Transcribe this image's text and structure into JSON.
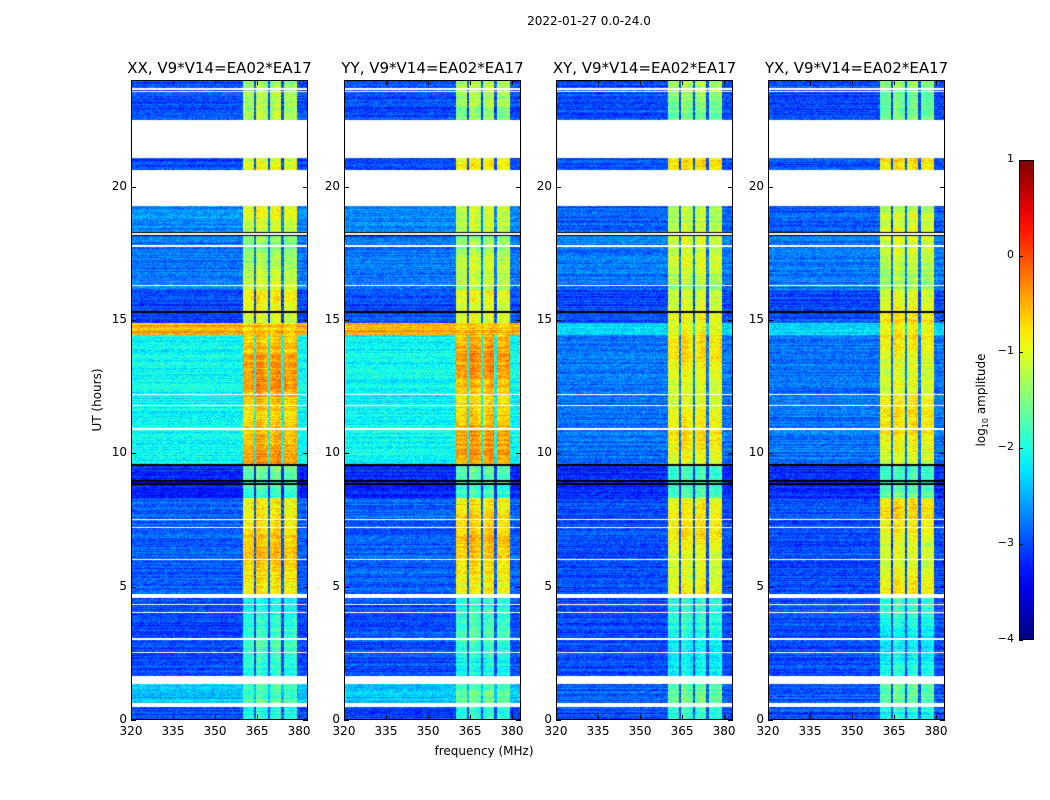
{
  "chart_data": {
    "type": "heatmap",
    "title": "2022-01-27 0.0-24.0",
    "xlabel": "frequency (MHz)",
    "ylabel": "UT (hours)",
    "xlim": [
      320,
      383.2
    ],
    "ylim": [
      0,
      24
    ],
    "xticks": [
      320,
      335,
      350,
      365,
      380
    ],
    "yticks": [
      0,
      5,
      10,
      15,
      20
    ],
    "panels": [
      {
        "title": "XX, V9*V14=EA02*EA17",
        "kind": "parallel"
      },
      {
        "title": "YY, V9*V14=EA02*EA17",
        "kind": "parallel"
      },
      {
        "title": "XY, V9*V14=EA02*EA17",
        "kind": "cross"
      },
      {
        "title": "YX, V9*V14=EA02*EA17",
        "kind": "cross"
      }
    ],
    "colorbar": {
      "label_prefix": "log",
      "label_sub": "10",
      "label_suffix": " amplitude",
      "range": [
        -4,
        1
      ],
      "ticks": [
        "1",
        "0",
        "−1",
        "−2",
        "−3",
        "−4"
      ],
      "tick_values": [
        1,
        0,
        -1,
        -2,
        -3,
        -4
      ],
      "colormap": "jet"
    },
    "bright_band_mhz": [
      360,
      379.5
    ],
    "band_notches_mhz": [
      364.5,
      369.5,
      374.3
    ],
    "segments_hours": [
      {
        "t": [
          0.0,
          0.45
        ],
        "parallel": [
          -3.0,
          -2.0
        ],
        "cross": [
          -3.0,
          -2.0
        ]
      },
      {
        "t": [
          0.6,
          1.3
        ],
        "parallel": [
          -2.4,
          -1.6
        ],
        "cross": [
          -2.9,
          -1.7
        ]
      },
      {
        "t": [
          1.6,
          4.55
        ],
        "parallel": [
          -3.0,
          -1.9
        ],
        "cross": [
          -3.0,
          -2.0
        ]
      },
      {
        "t": [
          4.7,
          8.3
        ],
        "parallel": [
          -2.9,
          -0.7
        ],
        "cross": [
          -3.0,
          -0.9
        ]
      },
      {
        "t": [
          8.3,
          9.6
        ],
        "parallel": [
          -3.2,
          -1.7
        ],
        "cross": [
          -3.2,
          -1.7
        ]
      },
      {
        "t": [
          9.6,
          14.45
        ],
        "parallel": [
          -2.1,
          -0.5
        ],
        "cross": [
          -2.8,
          -0.9
        ]
      },
      {
        "t": [
          14.45,
          14.9
        ],
        "parallel": [
          -0.5,
          -0.5
        ],
        "cross": [
          -2.3,
          -1.0
        ]
      },
      {
        "t": [
          14.9,
          16.15
        ],
        "parallel": [
          -3.0,
          -0.9
        ],
        "cross": [
          -3.0,
          -0.9
        ]
      },
      {
        "t": [
          16.15,
          18.2
        ],
        "parallel": [
          -2.8,
          -1.3
        ],
        "cross": [
          -2.8,
          -1.2
        ]
      },
      {
        "t": [
          18.3,
          19.3
        ],
        "parallel": [
          -2.7,
          -1.0
        ],
        "cross": [
          -2.9,
          -1.1
        ]
      },
      {
        "t": [
          20.67,
          21.1
        ],
        "parallel": [
          -3.0,
          -0.9
        ],
        "cross": [
          -3.0,
          -0.9
        ]
      },
      {
        "t": [
          22.55,
          24.0
        ],
        "parallel": [
          -3.0,
          -1.4
        ],
        "cross": [
          -3.0,
          -1.4
        ]
      }
    ],
    "flagged_lines_hours": [
      0.5,
      2.5,
      3.0,
      4.0,
      4.3,
      6.0,
      7.2,
      7.5,
      10.9,
      11.8,
      12.2,
      16.3,
      17.8,
      23.6,
      23.7
    ],
    "dark_lines_hours": [
      1.45,
      1.55,
      4.65,
      8.85,
      8.95,
      9.55,
      15.3,
      18.2,
      18.27
    ]
  }
}
